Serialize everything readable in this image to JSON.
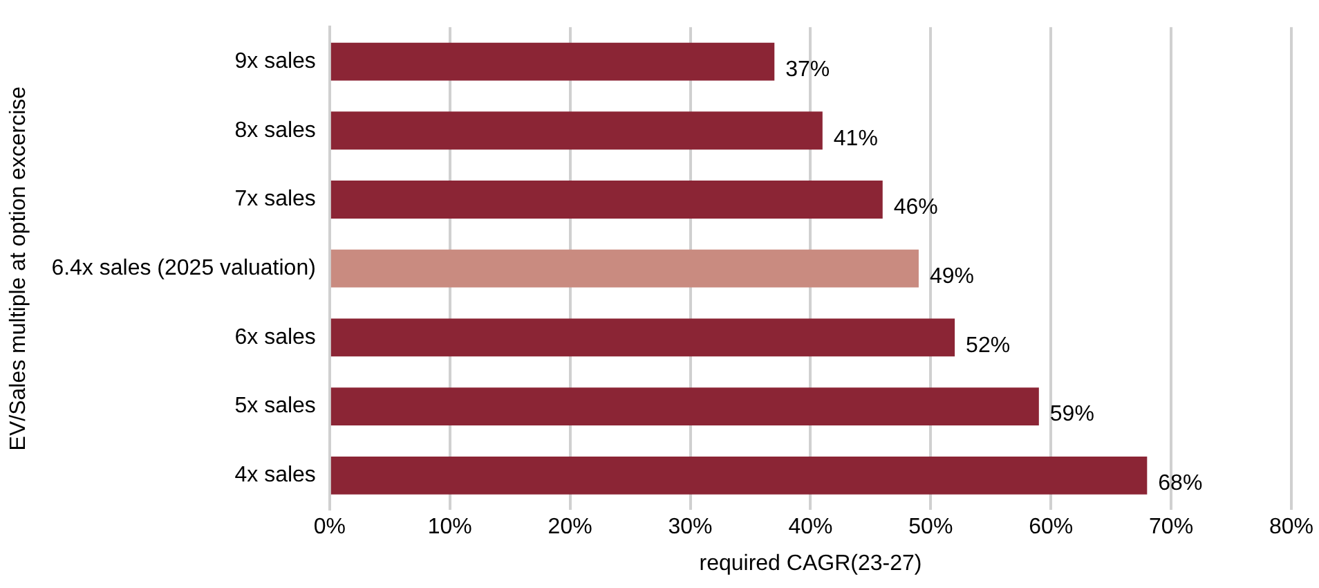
{
  "chart_data": {
    "type": "bar",
    "orientation": "horizontal",
    "xlabel": "required CAGR(23-27)",
    "ylabel": "EV/Sales multiple at option excercise",
    "categories": [
      "9x sales",
      "8x sales",
      "7x sales",
      "6.4x sales (2025 valuation)",
      "6x sales",
      "5x sales",
      "4x sales"
    ],
    "values": [
      37,
      41,
      46,
      49,
      52,
      59,
      68
    ],
    "colors": [
      "#8b2535",
      "#8b2535",
      "#8b2535",
      "#c98b80",
      "#8b2535",
      "#8b2535",
      "#8b2535"
    ],
    "value_labels": [
      "37%",
      "41%",
      "46%",
      "49%",
      "52%",
      "59%",
      "68%"
    ],
    "xlim": [
      0,
      80
    ],
    "xticks": [
      {
        "value": 0,
        "label": "0%"
      },
      {
        "value": 10,
        "label": "10%"
      },
      {
        "value": 20,
        "label": "20%"
      },
      {
        "value": 30,
        "label": "30%"
      },
      {
        "value": 40,
        "label": "40%"
      },
      {
        "value": 50,
        "label": "50%"
      },
      {
        "value": 60,
        "label": "60%"
      },
      {
        "value": 70,
        "label": "70%"
      },
      {
        "value": 80,
        "label": "80%"
      }
    ],
    "grid": "x",
    "legend": false
  }
}
